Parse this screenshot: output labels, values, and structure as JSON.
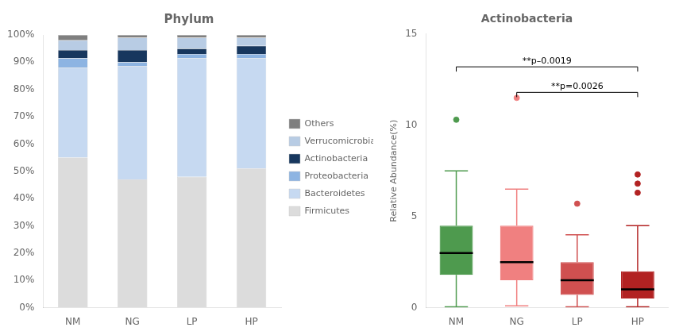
{
  "chart_data": [
    {
      "type": "bar",
      "title": "Phylum",
      "categories": [
        "NM",
        "NG",
        "LP",
        "HP"
      ],
      "series": [
        {
          "name": "Firmicutes",
          "color": "#dcdcdc",
          "values": [
            55.0,
            47.0,
            48.0,
            51.0
          ]
        },
        {
          "name": "Bacteroidetes",
          "color": "#c6d9f1",
          "values": [
            33.0,
            41.5,
            43.5,
            40.5
          ]
        },
        {
          "name": "Proteobacteria",
          "color": "#8db4e2",
          "values": [
            3.5,
            1.5,
            1.5,
            1.5
          ]
        },
        {
          "name": "Actinobacteria",
          "color": "#17375e",
          "values": [
            3.0,
            4.5,
            2.0,
            3.0
          ]
        },
        {
          "name": "Verrucomicrobia",
          "color": "#b8cce4",
          "values": [
            3.5,
            4.5,
            4.0,
            3.0
          ]
        },
        {
          "name": "Others",
          "color": "#7f7f7f",
          "values": [
            2.0,
            1.0,
            1.0,
            1.0
          ]
        }
      ],
      "stacked": true,
      "ylim": [
        0,
        100
      ],
      "yticks": [
        {
          "value": 0,
          "label": "0%"
        },
        {
          "value": 10,
          "label": "10%"
        },
        {
          "value": 20,
          "label": "20%"
        },
        {
          "value": 30,
          "label": "30%"
        },
        {
          "value": 40,
          "label": "40%"
        },
        {
          "value": 50,
          "label": "50%"
        },
        {
          "value": 60,
          "label": "60%"
        },
        {
          "value": 70,
          "label": "70%"
        },
        {
          "value": 80,
          "label": "80%"
        },
        {
          "value": 90,
          "label": "90%"
        },
        {
          "value": 100,
          "label": "100%"
        }
      ],
      "grid": false,
      "legend": "right"
    },
    {
      "type": "box",
      "title": "Actinobacteria",
      "y_label": "Relative Abundance(%)",
      "categories": [
        "NM",
        "NG",
        "LP",
        "HP"
      ],
      "boxes": [
        {
          "median": 3.0,
          "q1": 1.8,
          "q3": 4.5,
          "whislo": 0.05,
          "whishi": 7.5,
          "fliers": [
            10.3
          ]
        },
        {
          "median": 2.5,
          "q1": 1.5,
          "q3": 4.5,
          "whislo": 0.1,
          "whishi": 6.5,
          "fliers": [
            11.5
          ]
        },
        {
          "median": 1.5,
          "q1": 0.7,
          "q3": 2.5,
          "whislo": 0.05,
          "whishi": 4.0,
          "fliers": [
            5.7
          ]
        },
        {
          "median": 1.0,
          "q1": 0.5,
          "q3": 2.0,
          "whislo": 0.05,
          "whishi": 4.5,
          "fliers": [
            6.3,
            6.8,
            7.3
          ]
        }
      ],
      "colors": [
        "#4e9a4e",
        "#f08080",
        "#d05050",
        "#b22222"
      ],
      "ylim": [
        0,
        15
      ],
      "yticks": [
        0,
        5,
        10,
        15
      ],
      "grid": false,
      "annotations": [
        {
          "x1": "NM",
          "x2": "HP",
          "y": 13.2,
          "text": "**p–0.0019"
        },
        {
          "x1": "NG",
          "x2": "HP",
          "y": 11.8,
          "text": "**p=0.0026"
        }
      ]
    }
  ]
}
